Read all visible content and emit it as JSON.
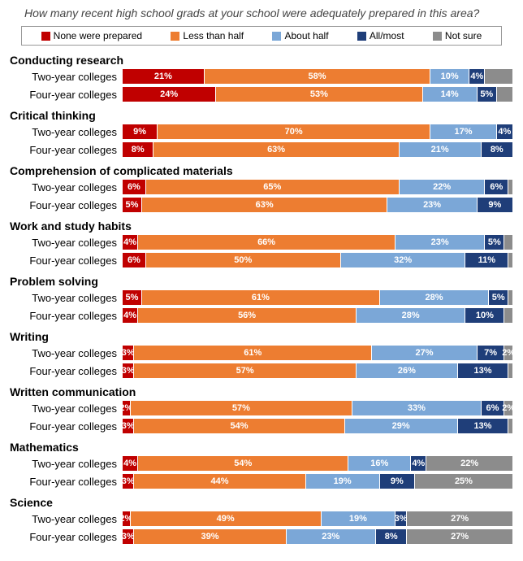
{
  "title": "How many recent high school grads at your school were adequately prepared in this area?",
  "legend": [
    {
      "label": "None were prepared",
      "color": "#c00000"
    },
    {
      "label": "Less than half",
      "color": "#ed7d31"
    },
    {
      "label": "About half",
      "color": "#7ba7d7"
    },
    {
      "label": "All/most",
      "color": "#1f3e79"
    },
    {
      "label": "Not sure",
      "color": "#8c8c8c"
    }
  ],
  "colors": {
    "none": "#c00000",
    "less": "#ed7d31",
    "about": "#7ba7d7",
    "all": "#1f3e79",
    "notsure": "#8c8c8c"
  },
  "label_fontsize": 13,
  "value_fontsize": 11,
  "min_label_pct": 2,
  "categories": [
    {
      "name": "Conducting research",
      "rows": [
        {
          "label": "Two-year colleges",
          "values": [
            21,
            58,
            10,
            4,
            7
          ],
          "show": [
            1,
            1,
            1,
            1,
            0
          ]
        },
        {
          "label": "Four-year colleges",
          "values": [
            24,
            53,
            14,
            5,
            4
          ],
          "show": [
            1,
            1,
            1,
            1,
            0
          ]
        }
      ]
    },
    {
      "name": "Critical thinking",
      "rows": [
        {
          "label": "Two-year colleges",
          "values": [
            9,
            70,
            17,
            4,
            0
          ],
          "show": [
            1,
            1,
            1,
            1,
            0
          ]
        },
        {
          "label": "Four-year colleges",
          "values": [
            8,
            63,
            21,
            8,
            0
          ],
          "show": [
            1,
            1,
            1,
            1,
            0
          ]
        }
      ]
    },
    {
      "name": "Comprehension of complicated materials",
      "rows": [
        {
          "label": "Two-year colleges",
          "values": [
            6,
            65,
            22,
            6,
            1
          ],
          "show": [
            1,
            1,
            1,
            1,
            0
          ]
        },
        {
          "label": "Four-year colleges",
          "values": [
            5,
            63,
            23,
            9,
            0
          ],
          "show": [
            1,
            1,
            1,
            1,
            0
          ]
        }
      ]
    },
    {
      "name": "Work and study habits",
      "rows": [
        {
          "label": "Two-year colleges",
          "values": [
            4,
            66,
            23,
            5,
            2
          ],
          "show": [
            1,
            1,
            1,
            1,
            0
          ]
        },
        {
          "label": "Four-year colleges",
          "values": [
            6,
            50,
            32,
            11,
            1
          ],
          "show": [
            1,
            1,
            1,
            1,
            0
          ]
        }
      ]
    },
    {
      "name": "Problem solving",
      "rows": [
        {
          "label": "Two-year colleges",
          "values": [
            5,
            61,
            28,
            5,
            1
          ],
          "show": [
            1,
            1,
            1,
            1,
            0
          ]
        },
        {
          "label": "Four-year colleges",
          "values": [
            4,
            56,
            28,
            10,
            2
          ],
          "show": [
            1,
            1,
            1,
            1,
            0
          ]
        }
      ]
    },
    {
      "name": "Writing",
      "rows": [
        {
          "label": "Two-year colleges",
          "values": [
            3,
            61,
            27,
            7,
            2
          ],
          "show": [
            1,
            1,
            1,
            1,
            1
          ]
        },
        {
          "label": "Four-year colleges",
          "values": [
            3,
            57,
            26,
            13,
            1
          ],
          "show": [
            1,
            1,
            1,
            1,
            1
          ]
        }
      ]
    },
    {
      "name": "Written communication",
      "rows": [
        {
          "label": "Two-year colleges",
          "values": [
            2,
            57,
            33,
            6,
            2
          ],
          "show": [
            1,
            1,
            1,
            1,
            1
          ]
        },
        {
          "label": "Four-year colleges",
          "values": [
            3,
            54,
            29,
            13,
            1
          ],
          "show": [
            1,
            1,
            1,
            1,
            1
          ]
        }
      ]
    },
    {
      "name": "Mathematics",
      "rows": [
        {
          "label": "Two-year colleges",
          "values": [
            4,
            54,
            16,
            4,
            22
          ],
          "show": [
            1,
            1,
            1,
            1,
            1
          ]
        },
        {
          "label": "Four-year colleges",
          "values": [
            3,
            44,
            19,
            9,
            25
          ],
          "show": [
            1,
            1,
            1,
            1,
            1
          ]
        }
      ]
    },
    {
      "name": "Science",
      "rows": [
        {
          "label": "Two-year colleges",
          "values": [
            2,
            49,
            19,
            3,
            27
          ],
          "show": [
            1,
            1,
            1,
            1,
            1
          ]
        },
        {
          "label": "Four-year colleges",
          "values": [
            3,
            39,
            23,
            8,
            27
          ],
          "show": [
            1,
            1,
            1,
            1,
            1
          ]
        }
      ]
    }
  ]
}
